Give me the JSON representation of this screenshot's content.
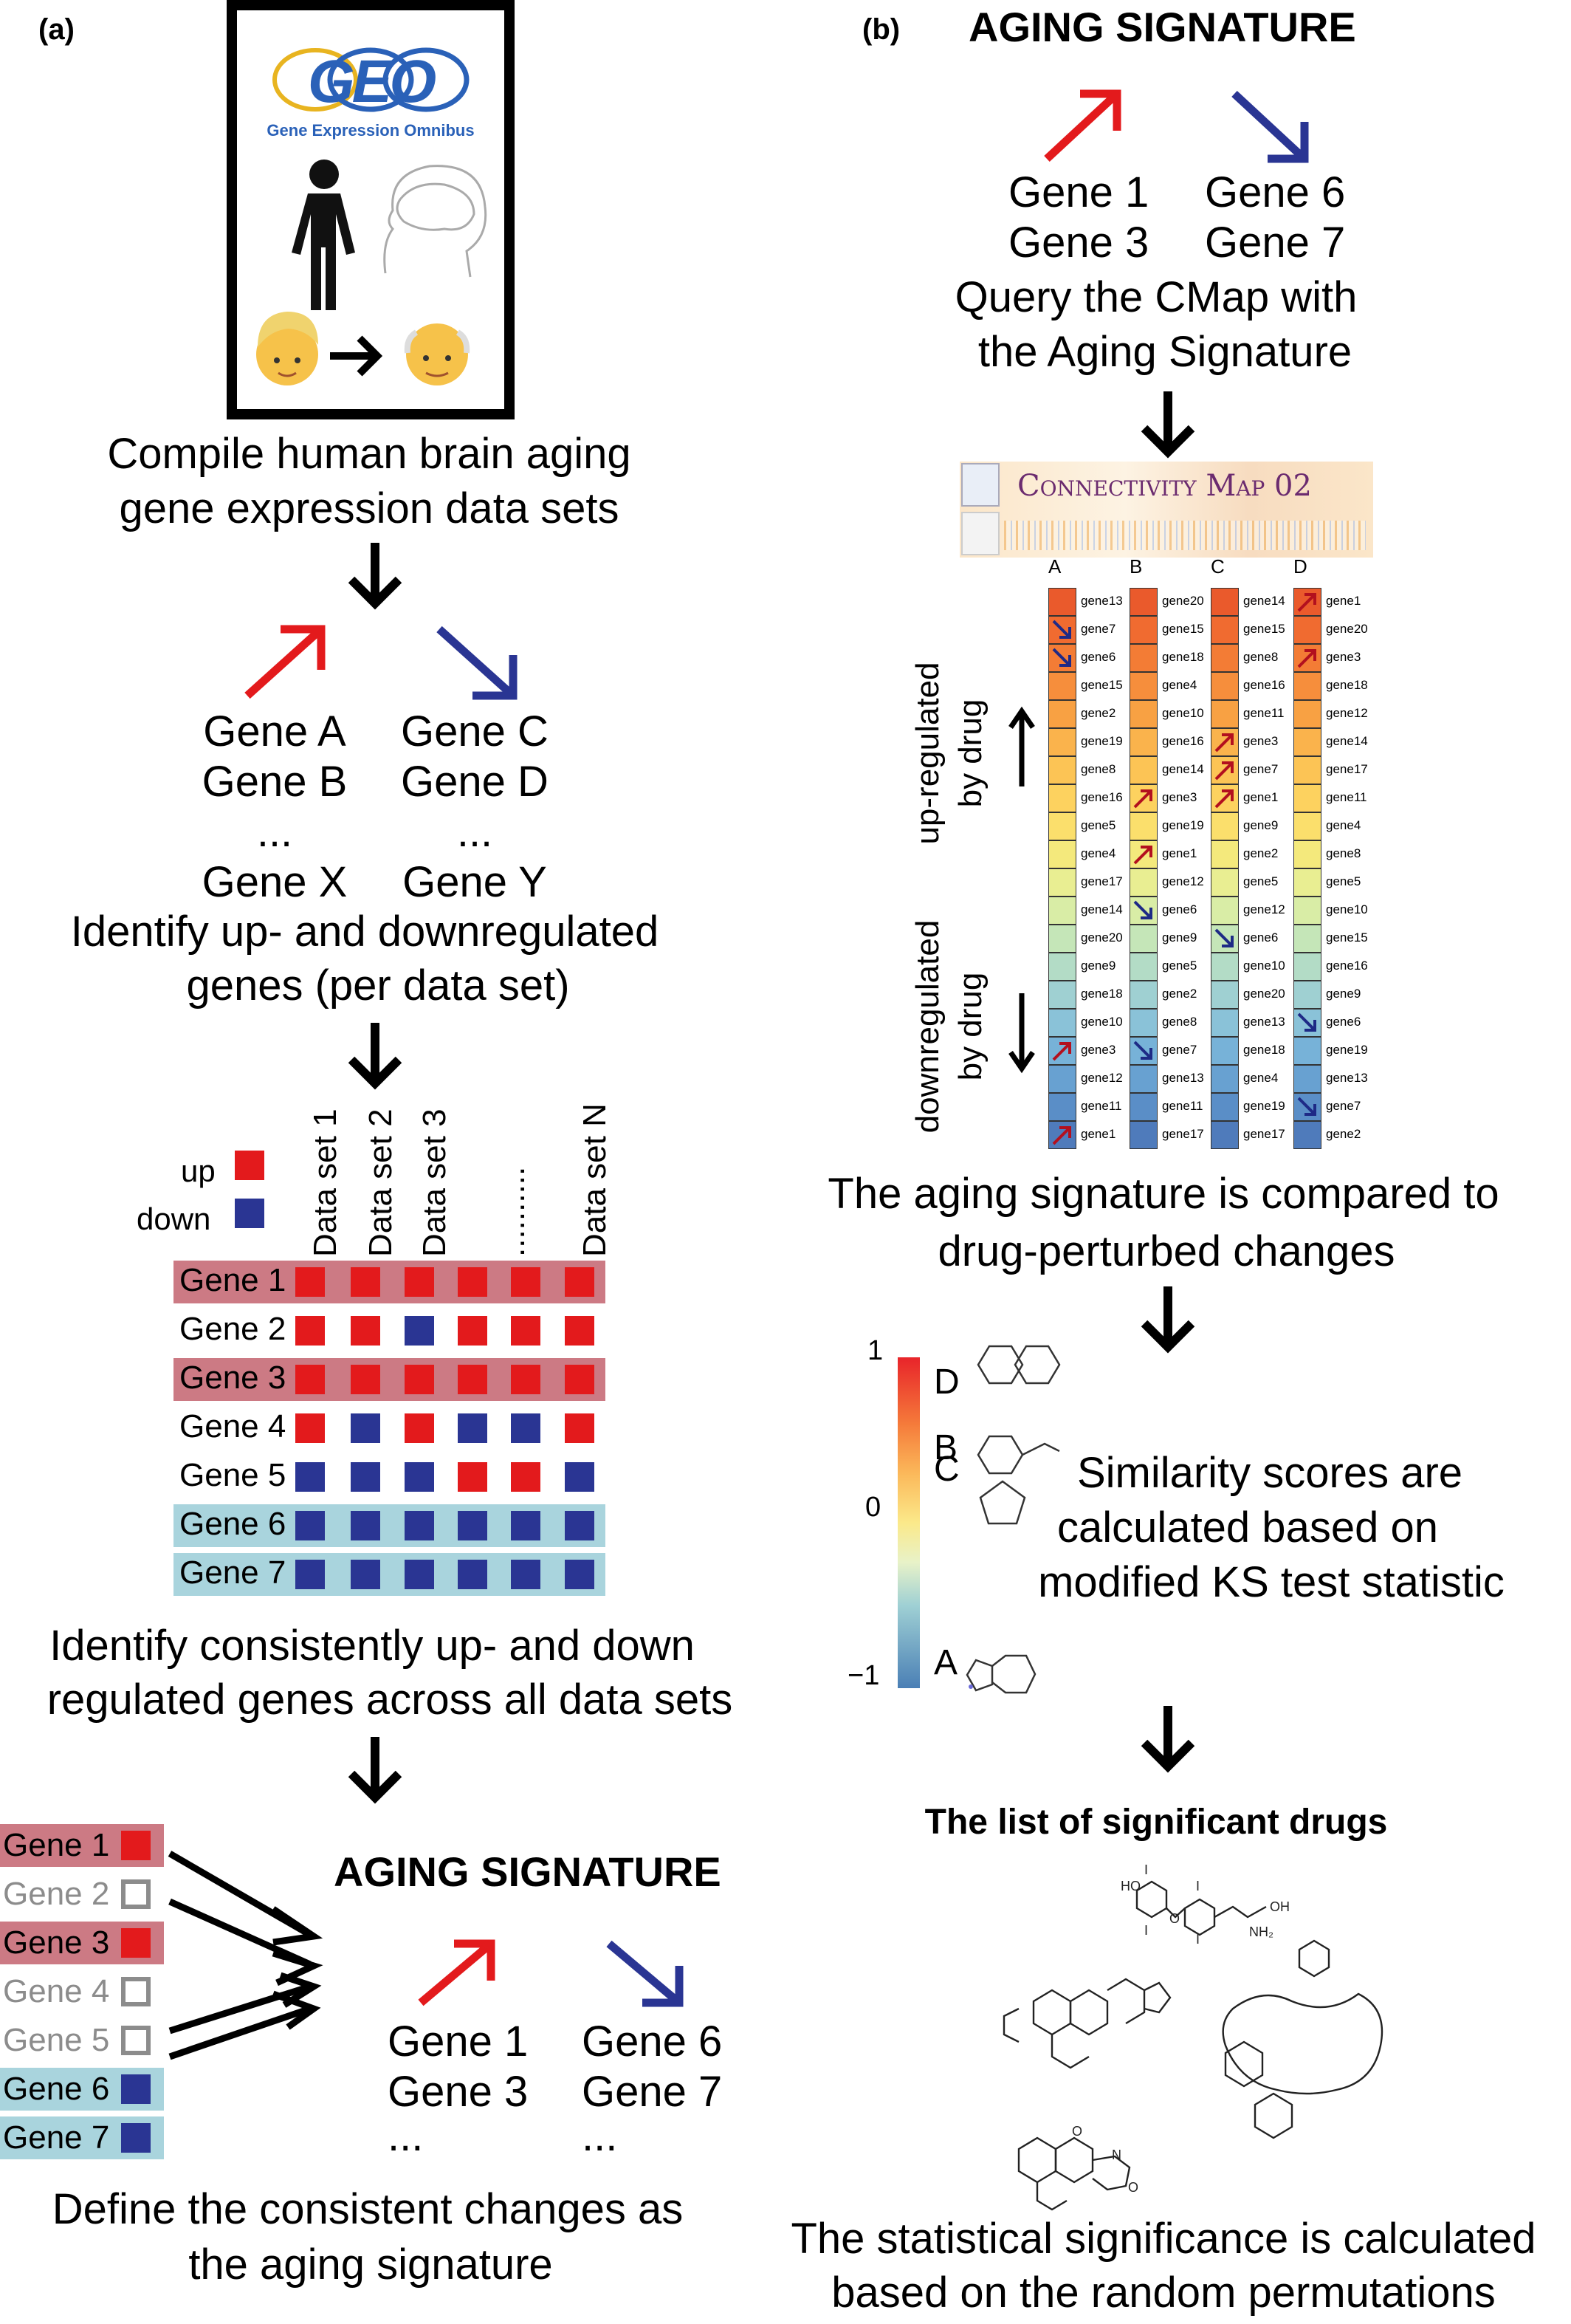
{
  "colors": {
    "up": "#e31a1c",
    "down": "#2a3593",
    "up_row": "#cc7a84",
    "down_row": "#a9d4dd",
    "outline": "#8c8c8c"
  },
  "panel_a": {
    "label": "(a)",
    "geo": {
      "logo": "GEO",
      "subtitle": "Gene Expression Omnibus"
    },
    "step1": [
      "Compile human brain aging",
      "gene expression data sets"
    ],
    "up_genes": [
      "Gene A",
      "Gene B",
      "...",
      "Gene X"
    ],
    "down_genes": [
      "Gene C",
      "Gene D",
      "...",
      "Gene Y"
    ],
    "step2": [
      "Identify up- and downregulated",
      "genes (per data set)"
    ],
    "legend": {
      "up": "up",
      "down": "down"
    },
    "datasets": [
      "Data set 1",
      "Data set 2",
      "Data set 3",
      "..........",
      "Data set N"
    ],
    "matrix_rows": [
      {
        "gene": "Gene 1",
        "highlight": "up",
        "cells": [
          "u",
          "u",
          "u",
          "u",
          "u",
          "u"
        ]
      },
      {
        "gene": "Gene 2",
        "highlight": "",
        "cells": [
          "u",
          "u",
          "d",
          "u",
          "u",
          "u"
        ]
      },
      {
        "gene": "Gene 3",
        "highlight": "up",
        "cells": [
          "u",
          "u",
          "u",
          "u",
          "u",
          "u"
        ]
      },
      {
        "gene": "Gene 4",
        "highlight": "",
        "cells": [
          "u",
          "d",
          "u",
          "d",
          "d",
          "u"
        ]
      },
      {
        "gene": "Gene 5",
        "highlight": "",
        "cells": [
          "d",
          "d",
          "d",
          "u",
          "u",
          "d"
        ]
      },
      {
        "gene": "Gene 6",
        "highlight": "down",
        "cells": [
          "d",
          "d",
          "d",
          "d",
          "d",
          "d"
        ]
      },
      {
        "gene": "Gene 7",
        "highlight": "down",
        "cells": [
          "d",
          "d",
          "d",
          "d",
          "d",
          "d"
        ]
      }
    ],
    "step3": [
      "Identify consistently up- and down",
      "regulated genes across all data sets"
    ],
    "selected": [
      {
        "gene": "Gene 1",
        "state": "up"
      },
      {
        "gene": "Gene 2",
        "state": "none"
      },
      {
        "gene": "Gene 3",
        "state": "up"
      },
      {
        "gene": "Gene 4",
        "state": "none"
      },
      {
        "gene": "Gene 5",
        "state": "none"
      },
      {
        "gene": "Gene 6",
        "state": "down"
      },
      {
        "gene": "Gene 7",
        "state": "down"
      }
    ],
    "signature_title": "AGING SIGNATURE",
    "sig_up": [
      "Gene 1",
      "Gene 3",
      "..."
    ],
    "sig_down": [
      "Gene 6",
      "Gene 7",
      "..."
    ],
    "step4": [
      "Define the consistent changes as",
      "the aging signature"
    ]
  },
  "panel_b": {
    "label": "(b)",
    "signature_title": "AGING SIGNATURE",
    "sig_up": [
      "Gene 1",
      "Gene 3"
    ],
    "sig_down": [
      "Gene 6",
      "Gene 7"
    ],
    "query": [
      "Query the CMap with",
      "the Aging Signature"
    ],
    "cmap_banner": "Connectivity Map 02",
    "side_up": [
      "up-regulated",
      "by drug"
    ],
    "side_down": [
      "downregulated",
      "by drug"
    ],
    "drugs": [
      {
        "id": "A",
        "genes": [
          "gene13",
          "gene7",
          "gene6",
          "gene15",
          "gene2",
          "gene19",
          "gene8",
          "gene16",
          "gene5",
          "gene4",
          "gene17",
          "gene14",
          "gene20",
          "gene9",
          "gene18",
          "gene10",
          "gene3",
          "gene12",
          "gene11",
          "gene1"
        ],
        "arrows": {
          "1": "down",
          "2": "down",
          "16": "up",
          "19": "up"
        }
      },
      {
        "id": "B",
        "genes": [
          "gene20",
          "gene15",
          "gene18",
          "gene4",
          "gene10",
          "gene16",
          "gene14",
          "gene3",
          "gene19",
          "gene1",
          "gene12",
          "gene6",
          "gene9",
          "gene5",
          "gene2",
          "gene8",
          "gene7",
          "gene13",
          "gene11",
          "gene17"
        ],
        "arrows": {
          "7": "up",
          "9": "up",
          "11": "down",
          "16": "down"
        }
      },
      {
        "id": "C",
        "genes": [
          "gene14",
          "gene15",
          "gene8",
          "gene16",
          "gene11",
          "gene3",
          "gene7",
          "gene1",
          "gene9",
          "gene2",
          "gene5",
          "gene12",
          "gene6",
          "gene10",
          "gene20",
          "gene13",
          "gene18",
          "gene4",
          "gene19",
          "gene17"
        ],
        "arrows": {
          "5": "up",
          "6": "up",
          "7": "up",
          "12": "down"
        }
      },
      {
        "id": "D",
        "genes": [
          "gene1",
          "gene20",
          "gene3",
          "gene18",
          "gene12",
          "gene14",
          "gene17",
          "gene11",
          "gene4",
          "gene8",
          "gene5",
          "gene10",
          "gene15",
          "gene16",
          "gene9",
          "gene6",
          "gene19",
          "gene13",
          "gene7",
          "gene2"
        ],
        "arrows": {
          "0": "up",
          "2": "up",
          "15": "down",
          "18": "down"
        }
      }
    ],
    "compare": [
      "The aging signature is compared to",
      "drug-perturbed changes"
    ],
    "scale_ticks": [
      "1",
      "0",
      "−1"
    ],
    "scores": [
      {
        "id": "D",
        "value": 0.85
      },
      {
        "id": "B",
        "value": 0.45
      },
      {
        "id": "C",
        "value": 0.32
      },
      {
        "id": "A",
        "value": -0.85
      }
    ],
    "similarity": [
      "Similarity scores are",
      "calculated based on",
      "modified KS test statistic"
    ],
    "list_title": "The list of significant drugs",
    "structure_labels": [
      "HO",
      "I",
      "I",
      "I",
      "I",
      "OH",
      "O",
      "NH₂",
      "O",
      "N",
      "O"
    ],
    "significance": [
      "The statistical significance is calculated",
      "based on the random permutations"
    ]
  }
}
